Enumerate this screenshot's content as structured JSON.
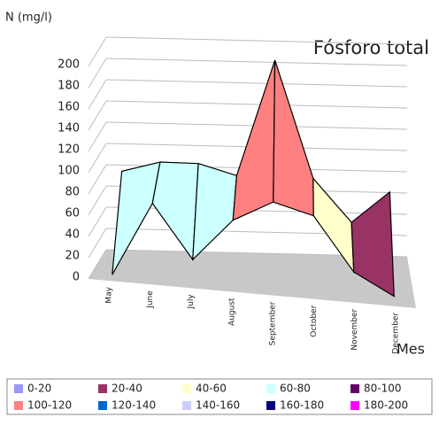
{
  "chart_data": {
    "type": "surface",
    "title": "Fósforo total",
    "y_label": "N (mg/l)",
    "x_label": "Mes",
    "categories": [
      "May",
      "June",
      "July",
      "August",
      "September",
      "October",
      "November",
      "December"
    ],
    "rows": [
      [
        0,
        70,
        20,
        60,
        80,
        70,
        20,
        0
      ],
      [
        80,
        90,
        90,
        80,
        190,
        80,
        40,
        70
      ]
    ],
    "ylim": [
      0,
      200
    ],
    "yticks": [
      0,
      20,
      40,
      60,
      80,
      100,
      120,
      140,
      160,
      180,
      200
    ],
    "grid": true,
    "bands": [
      {
        "name": "0-20",
        "color": "#9999ff"
      },
      {
        "name": "20-40",
        "color": "#993366"
      },
      {
        "name": "40-60",
        "color": "#ffffcc"
      },
      {
        "name": "60-80",
        "color": "#ccffff"
      },
      {
        "name": "80-100",
        "color": "#660066"
      },
      {
        "name": "100-120",
        "color": "#ff8080"
      },
      {
        "name": "120-140",
        "color": "#0066cc"
      },
      {
        "name": "140-160",
        "color": "#ccccff"
      },
      {
        "name": "160-180",
        "color": "#000080"
      },
      {
        "name": "180-200",
        "color": "#ff00ff"
      }
    ]
  }
}
